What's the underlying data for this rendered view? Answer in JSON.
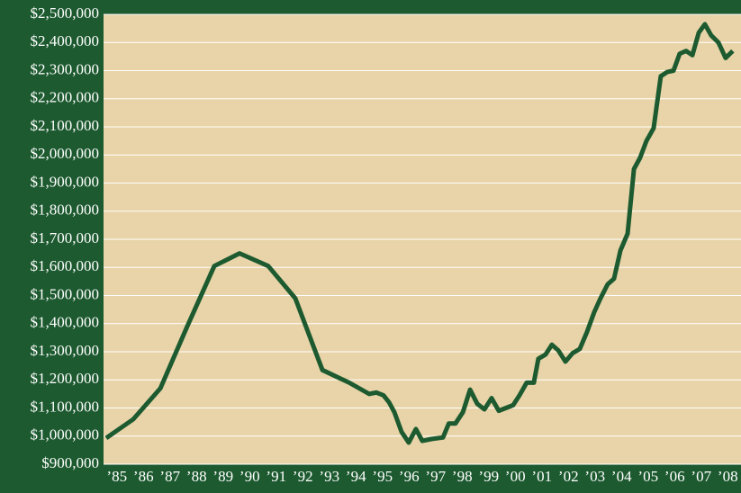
{
  "chart_data": {
    "type": "line",
    "x": [
      1985.1,
      1986.12,
      1987.14,
      1988.15,
      1989.17,
      1990.12,
      1991.2,
      1992.22,
      1993.24,
      1994.25,
      1995.0,
      1995.27,
      1995.54,
      1995.75,
      1995.95,
      1996.22,
      1996.49,
      1996.76,
      1997.0,
      1997.37,
      1997.78,
      1998.0,
      1998.25,
      1998.53,
      1998.8,
      1999.07,
      1999.34,
      1999.61,
      1999.88,
      2000.42,
      2000.66,
      2000.93,
      2001.2,
      2001.37,
      2001.64,
      2001.88,
      2002.12,
      2002.39,
      2002.66,
      2002.93,
      2003.2,
      2003.47,
      2003.71,
      2003.98,
      2004.22,
      2004.46,
      2004.73,
      2004.97,
      2005.2,
      2005.44,
      2005.71,
      2005.98,
      2006.22,
      2006.46,
      2006.69,
      2006.93,
      2007.17,
      2007.41,
      2007.64,
      2007.88,
      2008.15,
      2008.42,
      2008.69
    ],
    "series": [
      {
        "color": "#1d5a30",
        "values": [
          993000,
          1060000,
          1170000,
          1390000,
          1605000,
          1650000,
          1605000,
          1490000,
          1235000,
          1190000,
          1150000,
          1155000,
          1145000,
          1120000,
          1085000,
          1015000,
          977000,
          1025000,
          983000,
          990000,
          995000,
          1045000,
          1045000,
          1085000,
          1165000,
          1115000,
          1095000,
          1135000,
          1090000,
          1110000,
          1145000,
          1190000,
          1190000,
          1275000,
          1290000,
          1325000,
          1305000,
          1265000,
          1295000,
          1310000,
          1370000,
          1440000,
          1490000,
          1540000,
          1560000,
          1660000,
          1720000,
          1950000,
          1990000,
          2050000,
          2095000,
          2280000,
          2295000,
          2300000,
          2360000,
          2370000,
          2355000,
          2435000,
          2465000,
          2425000,
          2400000,
          2345000,
          2370000
        ]
      }
    ],
    "xlim": [
      1985,
      2009
    ],
    "xticks": [
      {
        "value": 1985.5,
        "label": "’85"
      },
      {
        "value": 1986.5,
        "label": "’86"
      },
      {
        "value": 1987.5,
        "label": "’87"
      },
      {
        "value": 1988.5,
        "label": "’88"
      },
      {
        "value": 1989.5,
        "label": "’89"
      },
      {
        "value": 1990.5,
        "label": "’90"
      },
      {
        "value": 1991.5,
        "label": "’91"
      },
      {
        "value": 1992.5,
        "label": "’92"
      },
      {
        "value": 1993.5,
        "label": "’93"
      },
      {
        "value": 1994.5,
        "label": "’94"
      },
      {
        "value": 1995.5,
        "label": "’95"
      },
      {
        "value": 1996.5,
        "label": "’96"
      },
      {
        "value": 1997.5,
        "label": "’97"
      },
      {
        "value": 1998.5,
        "label": "’98"
      },
      {
        "value": 1999.5,
        "label": "’99"
      },
      {
        "value": 2000.5,
        "label": "’00"
      },
      {
        "value": 2001.5,
        "label": "’01"
      },
      {
        "value": 2002.5,
        "label": "’02"
      },
      {
        "value": 2003.5,
        "label": "’03"
      },
      {
        "value": 2004.5,
        "label": "’04"
      },
      {
        "value": 2005.5,
        "label": "’05"
      },
      {
        "value": 2006.5,
        "label": "’06"
      },
      {
        "value": 2007.5,
        "label": "’07"
      },
      {
        "value": 2008.5,
        "label": "’08"
      }
    ],
    "ylim": [
      900000,
      2500000
    ],
    "yticks": [
      {
        "value": 900000,
        "label": "$900,000"
      },
      {
        "value": 1000000,
        "label": "$1,000,000"
      },
      {
        "value": 1100000,
        "label": "$1,100,000"
      },
      {
        "value": 1200000,
        "label": "$1,200,000"
      },
      {
        "value": 1300000,
        "label": "$1,300,000"
      },
      {
        "value": 1400000,
        "label": "$1,400,000"
      },
      {
        "value": 1500000,
        "label": "$1,500,000"
      },
      {
        "value": 1600000,
        "label": "$1,600,000"
      },
      {
        "value": 1700000,
        "label": "$1,700,000"
      },
      {
        "value": 1800000,
        "label": "$1,800,000"
      },
      {
        "value": 1900000,
        "label": "$1,900,000"
      },
      {
        "value": 2000000,
        "label": "$2,000,000"
      },
      {
        "value": 2100000,
        "label": "$2,100,000"
      },
      {
        "value": 2200000,
        "label": "$2,200,000"
      },
      {
        "value": 2300000,
        "label": "$2,300,000"
      },
      {
        "value": 2400000,
        "label": "$2,400,000"
      },
      {
        "value": 2500000,
        "label": "$2,500,000"
      }
    ],
    "grid": true
  }
}
